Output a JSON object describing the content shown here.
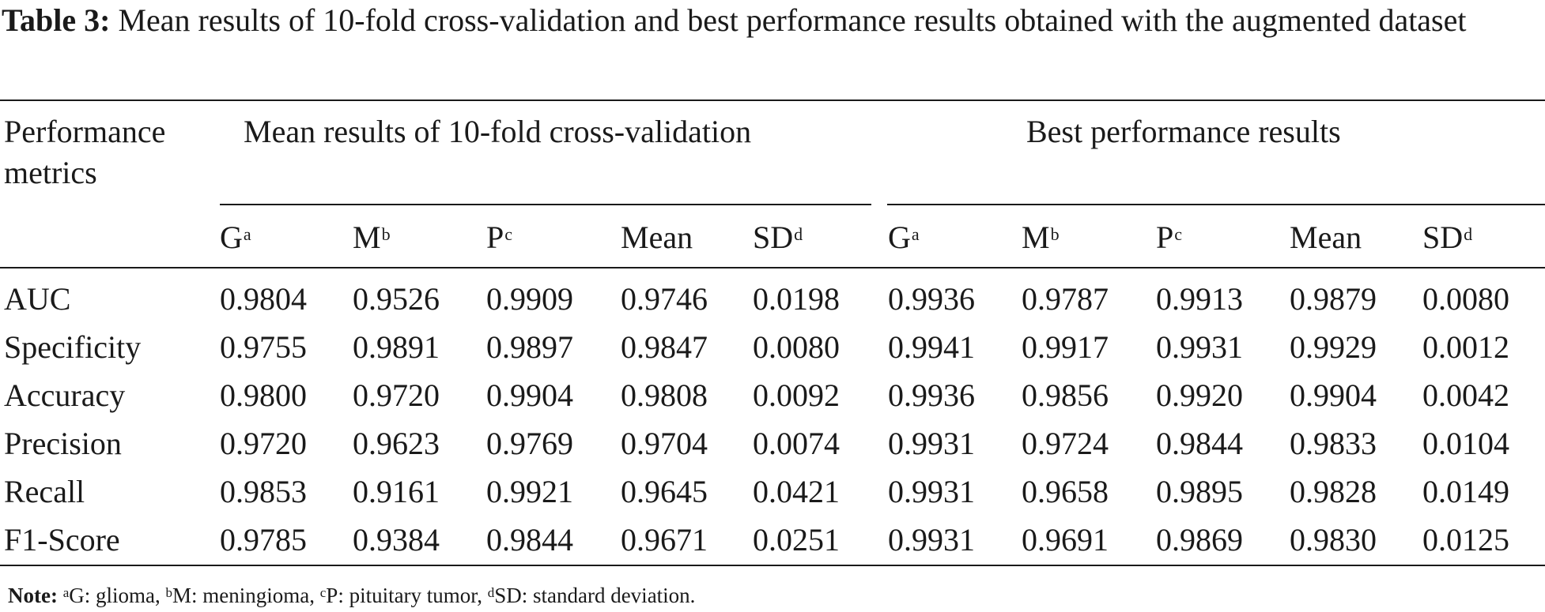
{
  "caption": {
    "label": "Table 3:",
    "text": "Mean results of 10-fold cross-validation and best performance results obtained with the augmented dataset"
  },
  "table": {
    "header": {
      "metric_col_line1": "Performance",
      "metric_col_line2": "metrics",
      "group1": "Mean results of 10-fold cross-validation",
      "group2": "Best performance results",
      "sub_columns": [
        {
          "text": "G",
          "sup": "a"
        },
        {
          "text": "M",
          "sup": "b"
        },
        {
          "text": "P",
          "sup": "c"
        },
        {
          "text": "Mean",
          "sup": ""
        },
        {
          "text": "SD",
          "sup": "d"
        }
      ]
    },
    "rows": [
      {
        "metric": "AUC",
        "values": [
          "0.9804",
          "0.9526",
          "0.9909",
          "0.9746",
          "0.0198",
          "0.9936",
          "0.9787",
          "0.9913",
          "0.9879",
          "0.0080"
        ]
      },
      {
        "metric": "Specificity",
        "values": [
          "0.9755",
          "0.9891",
          "0.9897",
          "0.9847",
          "0.0080",
          "0.9941",
          "0.9917",
          "0.9931",
          "0.9929",
          "0.0012"
        ]
      },
      {
        "metric": "Accuracy",
        "values": [
          "0.9800",
          "0.9720",
          "0.9904",
          "0.9808",
          "0.0092",
          "0.9936",
          "0.9856",
          "0.9920",
          "0.9904",
          "0.0042"
        ]
      },
      {
        "metric": "Precision",
        "values": [
          "0.9720",
          "0.9623",
          "0.9769",
          "0.9704",
          "0.0074",
          "0.9931",
          "0.9724",
          "0.9844",
          "0.9833",
          "0.0104"
        ]
      },
      {
        "metric": "Recall",
        "values": [
          "0.9853",
          "0.9161",
          "0.9921",
          "0.9645",
          "0.0421",
          "0.9931",
          "0.9658",
          "0.9895",
          "0.9828",
          "0.0149"
        ]
      },
      {
        "metric": "F1-Score",
        "values": [
          "0.9785",
          "0.9384",
          "0.9844",
          "0.9671",
          "0.0251",
          "0.9931",
          "0.9691",
          "0.9869",
          "0.9830",
          "0.0125"
        ]
      }
    ]
  },
  "note": {
    "label": "Note:",
    "items": [
      {
        "sup": "a",
        "text": "G: glioma, "
      },
      {
        "sup": "b",
        "text": "M: meningioma, "
      },
      {
        "sup": "c",
        "text": "P: pituitary tumor, "
      },
      {
        "sup": "d",
        "text": "SD: standard deviation."
      }
    ]
  }
}
